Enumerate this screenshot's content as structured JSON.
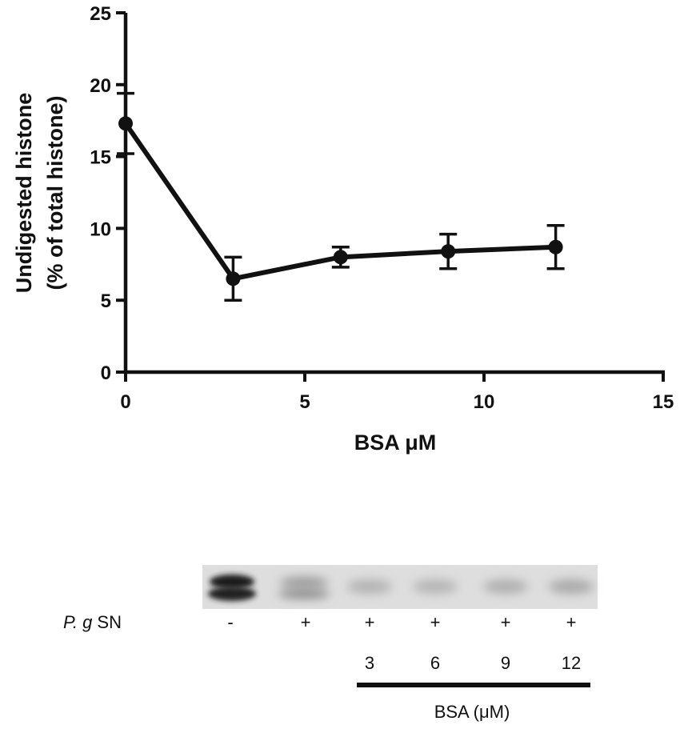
{
  "chart_data": {
    "type": "line",
    "xlabel": "BSA μM",
    "ylabel_line1": "Undigested  histone",
    "ylabel_line2": "(% of total  histone)",
    "xlim": [
      0,
      15
    ],
    "ylim": [
      0,
      25
    ],
    "x_ticks": [
      0,
      5,
      10,
      15
    ],
    "y_ticks": [
      0,
      5,
      10,
      15,
      20,
      25
    ],
    "grid": false,
    "legend": "none",
    "series": [
      {
        "x": [
          0,
          3,
          6,
          9,
          12
        ],
        "values": [
          17.3,
          6.5,
          8.0,
          8.4,
          8.7
        ],
        "error": [
          2.1,
          1.5,
          0.7,
          1.2,
          1.5
        ]
      }
    ]
  },
  "gel": {
    "row1_label_italic": "P. g",
    "row1_label_rest": " SN",
    "lanes": [
      {
        "sn": "-",
        "bsa": ""
      },
      {
        "sn": "+",
        "bsa": ""
      },
      {
        "sn": "+",
        "bsa": "3"
      },
      {
        "sn": "+",
        "bsa": "6"
      },
      {
        "sn": "+",
        "bsa": "9"
      },
      {
        "sn": "+",
        "bsa": "12"
      }
    ],
    "bar_label": "BSA (μM)"
  },
  "colors": {
    "ink": "#111111",
    "gel_bg": "#dcdcdc"
  }
}
